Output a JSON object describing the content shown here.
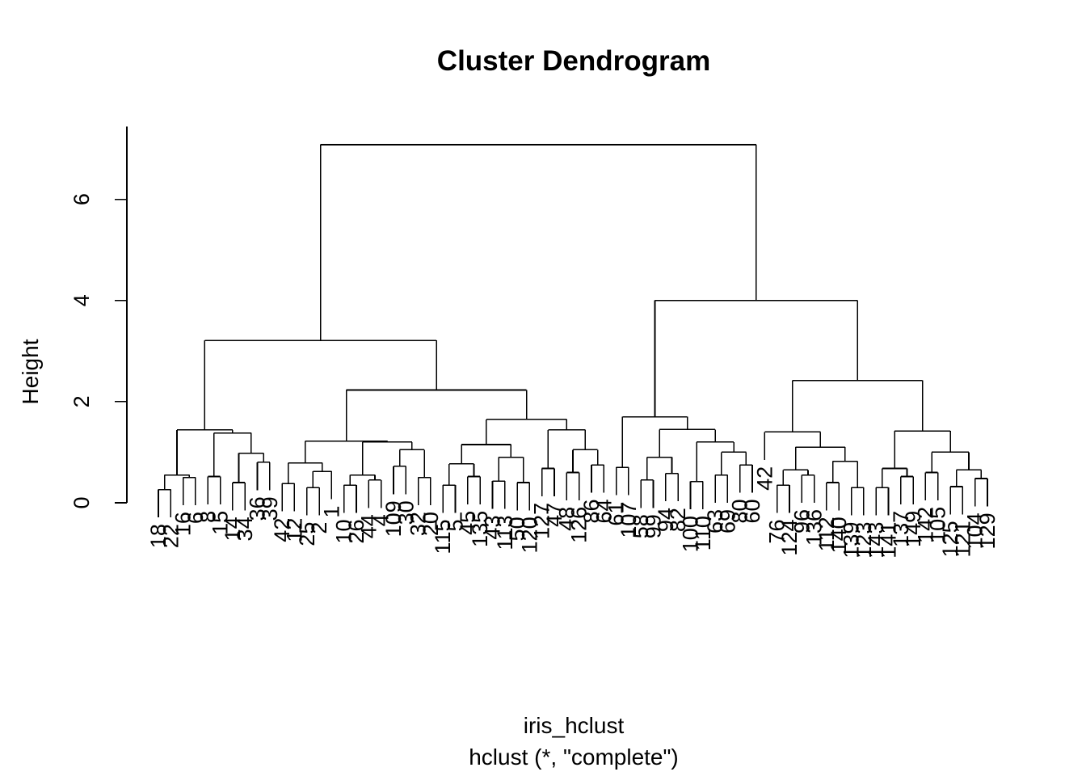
{
  "chart_data": {
    "type": "dendrogram",
    "title": "Cluster Dendrogram",
    "xlabel": "iris_hclust",
    "subtitle": "hclust (*, \"complete\")",
    "ylabel": "Height",
    "ylim": [
      0,
      7.08
    ],
    "yticks": [
      0,
      2,
      4,
      6
    ],
    "colors": {
      "line": "#000000",
      "background": "#ffffff"
    },
    "tree": {
      "h": 7.08,
      "children": [
        {
          "h": 3.21,
          "children": [
            {
              "h": 1.44,
              "children": [
                {
                  "h": 0.55,
                  "children": [
                    {
                      "h": 0.26,
                      "children": [
                        {
                          "n": 18
                        },
                        {
                          "n": 22
                        }
                      ]
                    },
                    {
                      "h": 0.5,
                      "children": [
                        {
                          "n": 16
                        },
                        {
                          "n": 6
                        }
                      ]
                    }
                  ]
                },
                {
                  "h": 1.38,
                  "children": [
                    {
                      "h": 0.52,
                      "children": [
                        {
                          "n": 8
                        },
                        {
                          "n": 15
                        }
                      ]
                    },
                    {
                      "h": 0.98,
                      "children": [
                        {
                          "h": 0.4,
                          "children": [
                            {
                              "n": 14
                            },
                            {
                              "n": 34
                            }
                          ]
                        },
                        {
                          "h": 0.8,
                          "children": [
                            {
                              "n": 36
                            },
                            {
                              "n": 39
                            }
                          ]
                        }
                      ]
                    }
                  ]
                }
              ]
            },
            {
              "h": 2.23,
              "children": [
                {
                  "h": 1.22,
                  "children": [
                    {
                      "h": 0.79,
                      "children": [
                        {
                          "h": 0.38,
                          "children": [
                            {
                              "n": 42
                            },
                            {
                              "n": 12
                            }
                          ]
                        },
                        {
                          "h": 0.62,
                          "children": [
                            {
                              "h": 0.3,
                              "children": [
                                {
                                  "n": 25
                                },
                                {
                                  "n": 2
                                }
                              ]
                            },
                            {
                              "n": 1
                            }
                          ]
                        }
                      ]
                    },
                    {
                      "h": 1.2,
                      "children": [
                        {
                          "h": 0.55,
                          "children": [
                            {
                              "h": 0.35,
                              "children": [
                                {
                                  "n": 10
                                },
                                {
                                  "n": 26
                                }
                              ]
                            },
                            {
                              "h": 0.45,
                              "children": [
                                {
                                  "n": 44
                                },
                                {
                                  "n": 4
                                }
                              ]
                            }
                          ]
                        },
                        {
                          "h": 1.05,
                          "children": [
                            {
                              "h": 0.72,
                              "children": [
                                {
                                  "n": 109
                                },
                                {
                                  "n": 30
                                }
                              ]
                            },
                            {
                              "h": 0.5,
                              "children": [
                                {
                                  "n": 32
                                },
                                {
                                  "n": 20
                                }
                              ]
                            }
                          ]
                        }
                      ]
                    }
                  ]
                },
                {
                  "h": 1.65,
                  "children": [
                    {
                      "h": 1.15,
                      "children": [
                        {
                          "h": 0.77,
                          "children": [
                            {
                              "h": 0.35,
                              "children": [
                                {
                                  "n": 115
                                },
                                {
                                  "n": 5
                                }
                              ]
                            },
                            {
                              "h": 0.52,
                              "children": [
                                {
                                  "n": 45
                                },
                                {
                                  "n": 135
                                }
                              ]
                            }
                          ]
                        },
                        {
                          "h": 0.9,
                          "children": [
                            {
                              "h": 0.43,
                              "children": [
                                {
                                  "n": 43
                                },
                                {
                                  "n": 113
                                }
                              ]
                            },
                            {
                              "h": 0.4,
                              "children": [
                                {
                                  "n": 50
                                },
                                {
                                  "n": 120
                                }
                              ]
                            }
                          ]
                        }
                      ]
                    },
                    {
                      "h": 1.44,
                      "children": [
                        {
                          "h": 0.68,
                          "children": [
                            {
                              "n": 127
                            },
                            {
                              "n": 47
                            }
                          ]
                        },
                        {
                          "h": 1.05,
                          "children": [
                            {
                              "h": 0.6,
                              "children": [
                                {
                                  "n": 48
                                },
                                {
                                  "n": 126
                                }
                              ]
                            },
                            {
                              "h": 0.75,
                              "children": [
                                {
                                  "n": 86
                                },
                                {
                                  "n": 64
                                }
                              ]
                            }
                          ]
                        }
                      ]
                    }
                  ]
                }
              ]
            }
          ]
        },
        {
          "h": 4.0,
          "children": [
            {
              "h": 1.7,
              "children": [
                {
                  "h": 0.7,
                  "children": [
                    {
                      "n": 61
                    },
                    {
                      "n": 107
                    }
                  ]
                },
                {
                  "h": 1.45,
                  "children": [
                    {
                      "h": 0.9,
                      "children": [
                        {
                          "h": 0.45,
                          "children": [
                            {
                              "n": 58
                            },
                            {
                              "n": 99
                            }
                          ]
                        },
                        {
                          "h": 0.58,
                          "children": [
                            {
                              "n": 94
                            },
                            {
                              "n": 82
                            }
                          ]
                        }
                      ]
                    },
                    {
                      "h": 1.2,
                      "children": [
                        {
                          "h": 0.42,
                          "children": [
                            {
                              "n": 100
                            },
                            {
                              "n": 110
                            }
                          ]
                        },
                        {
                          "h": 1.0,
                          "children": [
                            {
                              "h": 0.55,
                              "children": [
                                {
                                  "n": 63
                                },
                                {
                                  "n": 69
                                }
                              ]
                            },
                            {
                              "h": 0.75,
                              "children": [
                                {
                                  "n": 80
                                },
                                {
                                  "n": 60
                                }
                              ]
                            }
                          ]
                        }
                      ]
                    }
                  ]
                }
              ]
            },
            {
              "h": 2.42,
              "children": [
                {
                  "h": 1.4,
                  "children": [
                    {
                      "n": 42
                    },
                    {
                      "h": 1.1,
                      "children": [
                        {
                          "h": 0.65,
                          "children": [
                            {
                              "h": 0.35,
                              "children": [
                                {
                                  "n": 76
                                },
                                {
                                  "n": 124
                                }
                              ]
                            },
                            {
                              "h": 0.55,
                              "children": [
                                {
                                  "n": 96
                                },
                                {
                                  "n": 136
                                }
                              ]
                            }
                          ]
                        },
                        {
                          "h": 0.82,
                          "children": [
                            {
                              "h": 0.4,
                              "children": [
                                {
                                  "n": 112
                                },
                                {
                                  "n": 140
                                }
                              ]
                            },
                            {
                              "h": 0.3,
                              "children": [
                                {
                                  "n": 139
                                },
                                {
                                  "n": 123
                                }
                              ]
                            }
                          ]
                        }
                      ]
                    }
                  ]
                },
                {
                  "h": 1.42,
                  "children": [
                    {
                      "h": 0.68,
                      "children": [
                        {
                          "h": 0.3,
                          "children": [
                            {
                              "n": 143
                            },
                            {
                              "n": 141
                            }
                          ]
                        },
                        {
                          "h": 0.52,
                          "children": [
                            {
                              "n": 137
                            },
                            {
                              "n": 149
                            }
                          ]
                        }
                      ]
                    },
                    {
                      "h": 1.0,
                      "children": [
                        {
                          "h": 0.6,
                          "children": [
                            {
                              "n": 142
                            },
                            {
                              "n": 105
                            }
                          ]
                        },
                        {
                          "h": 0.65,
                          "children": [
                            {
                              "h": 0.32,
                              "children": [
                                {
                                  "n": 125
                                },
                                {
                                  "n": 121
                                }
                              ]
                            },
                            {
                              "h": 0.48,
                              "children": [
                                {
                                  "n": 104
                                },
                                {
                                  "n": 129
                                }
                              ]
                            }
                          ]
                        }
                      ]
                    }
                  ]
                }
              ]
            }
          ]
        }
      ]
    }
  }
}
